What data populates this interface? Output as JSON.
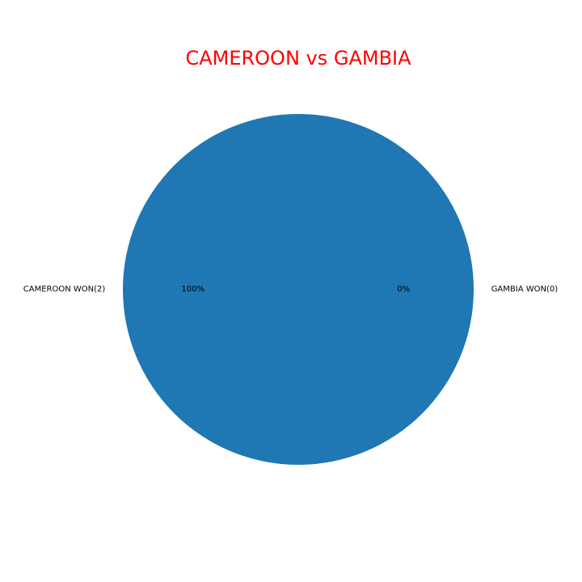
{
  "chart_data": {
    "type": "pie",
    "title": "CAMEROON vs GAMBIA",
    "title_color": "#ff0000",
    "labels": [
      "CAMEROON WON(2)",
      "GAMBIA WON(0)"
    ],
    "values": [
      2,
      0
    ],
    "percent_labels": [
      "100%",
      "0%"
    ],
    "colors": [
      "#1f77b4",
      "#ff7f0e"
    ]
  }
}
